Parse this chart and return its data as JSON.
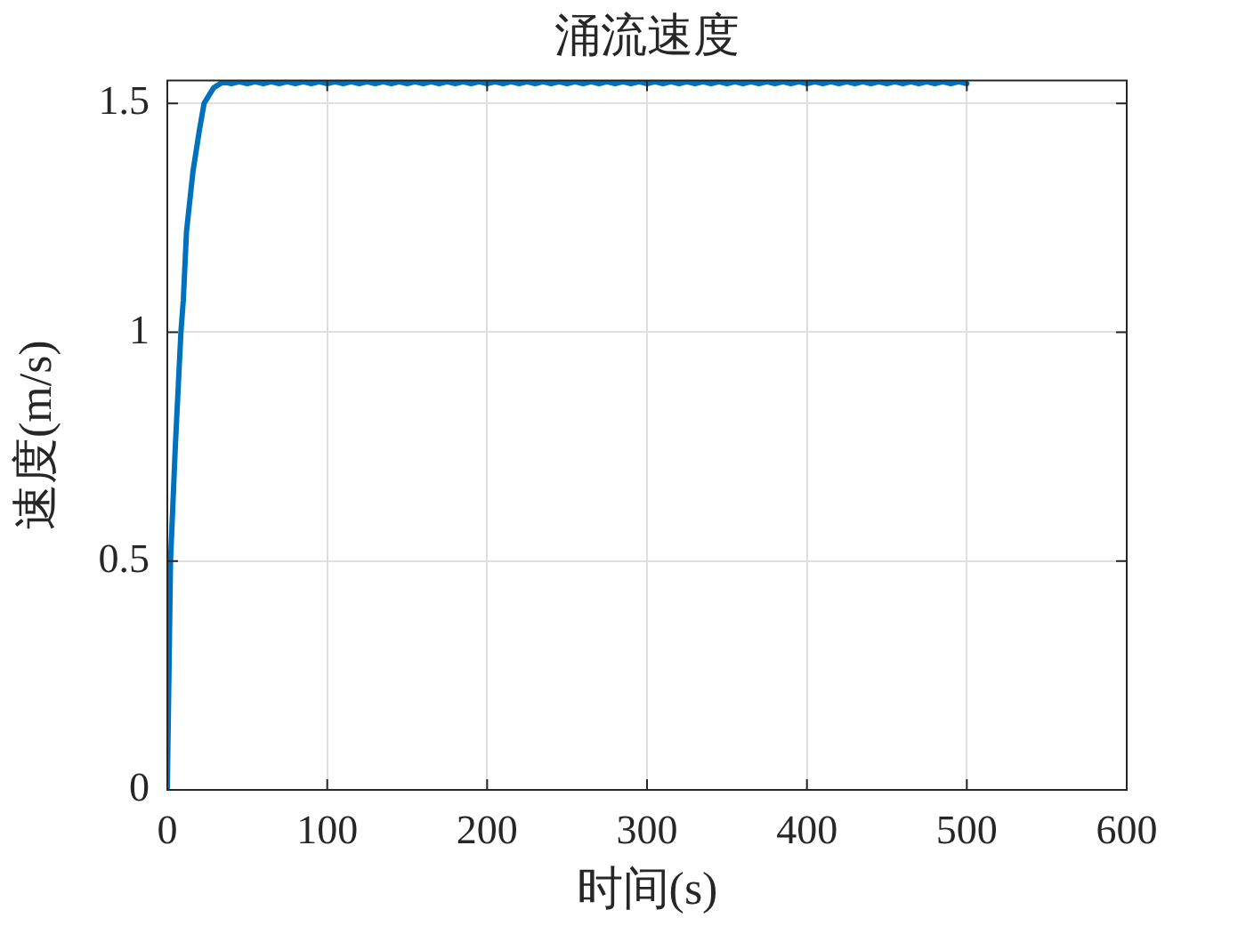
{
  "chart_data": {
    "type": "line",
    "title": "涌流速度",
    "xlabel": "时间(s)",
    "ylabel": "速度(m/s)",
    "x": [
      0,
      2,
      5,
      8.5,
      10,
      12,
      16,
      20,
      23,
      29,
      35,
      40,
      45,
      50,
      55,
      60,
      65,
      70,
      75,
      80,
      85,
      90,
      95,
      100,
      105,
      110,
      115,
      120,
      125,
      130,
      135,
      140,
      145,
      150,
      155,
      160,
      165,
      170,
      175,
      180,
      185,
      190,
      195,
      200,
      205,
      210,
      215,
      220,
      225,
      230,
      235,
      240,
      245,
      250,
      255,
      260,
      265,
      270,
      275,
      280,
      285,
      290,
      295,
      300,
      305,
      310,
      315,
      320,
      325,
      330,
      335,
      340,
      345,
      350,
      355,
      360,
      365,
      370,
      375,
      380,
      385,
      390,
      395,
      400,
      405,
      410,
      415,
      420,
      425,
      430,
      435,
      440,
      445,
      450,
      455,
      460,
      465,
      470,
      475,
      480,
      485,
      490,
      495,
      500
    ],
    "series": [
      {
        "color": "#0072bd",
        "values": [
          0,
          0.5,
          0.75,
          1,
          1.07,
          1.22,
          1.35,
          1.44,
          1.5,
          1.534,
          1.547,
          1.543,
          1.547,
          1.543,
          1.547,
          1.543,
          1.547,
          1.543,
          1.547,
          1.543,
          1.547,
          1.543,
          1.547,
          1.543,
          1.547,
          1.543,
          1.547,
          1.543,
          1.547,
          1.543,
          1.547,
          1.543,
          1.547,
          1.543,
          1.547,
          1.543,
          1.547,
          1.543,
          1.547,
          1.543,
          1.547,
          1.543,
          1.547,
          1.543,
          1.547,
          1.543,
          1.547,
          1.543,
          1.547,
          1.543,
          1.547,
          1.543,
          1.547,
          1.543,
          1.547,
          1.543,
          1.547,
          1.543,
          1.547,
          1.543,
          1.547,
          1.543,
          1.547,
          1.543,
          1.547,
          1.543,
          1.547,
          1.543,
          1.547,
          1.543,
          1.547,
          1.543,
          1.547,
          1.543,
          1.547,
          1.543,
          1.547,
          1.543,
          1.547,
          1.543,
          1.547,
          1.543,
          1.547,
          1.543,
          1.547,
          1.543,
          1.547,
          1.543,
          1.547,
          1.543,
          1.547,
          1.543,
          1.547,
          1.543,
          1.547,
          1.543,
          1.547,
          1.543,
          1.547,
          1.543,
          1.547,
          1.543,
          1.547,
          1.543
        ]
      }
    ],
    "xlim": [
      0,
      600
    ],
    "xticks": [
      0,
      100,
      200,
      300,
      400,
      500,
      600
    ],
    "ylim": [
      0,
      1.55
    ],
    "yticks": [
      0,
      0.5,
      1,
      1.5
    ],
    "grid": true,
    "line_style": "solid"
  }
}
